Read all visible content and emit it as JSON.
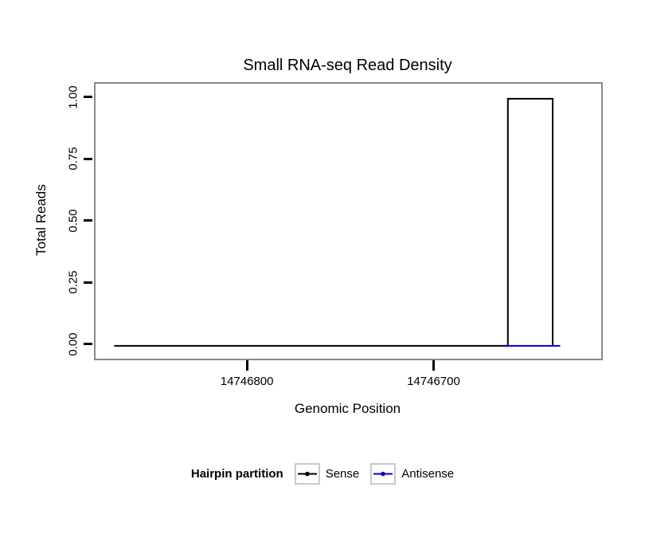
{
  "chart_data": {
    "type": "line",
    "title": "Small RNA-seq Read Density",
    "xlabel": "Genomic Position",
    "ylabel": "Total Reads",
    "xlim": [
      14746882,
      14746611
    ],
    "x_axis_reversed": true,
    "ylim": [
      -0.052,
      1.061
    ],
    "x_ticks": [
      14746800,
      14746700
    ],
    "x_tick_labels": [
      "14746800",
      "14746700"
    ],
    "y_ticks": [
      0.0,
      0.25,
      0.5,
      0.75,
      1.0
    ],
    "y_tick_labels": [
      "0.00",
      "0.25",
      "0.50",
      "0.75",
      "1.00"
    ],
    "grid": false,
    "panel_border_color": "#8a8a8a",
    "legend": {
      "title": "Hairpin partition",
      "position": "bottom",
      "entries": [
        {
          "label": "Sense",
          "color": "#000000"
        },
        {
          "label": "Antisense",
          "color": "#0000cd"
        }
      ]
    },
    "series": [
      {
        "name": "Sense",
        "color": "#000000",
        "points": [
          [
            14746872,
            0
          ],
          [
            14746661,
            0
          ],
          [
            14746661,
            1
          ],
          [
            14746637,
            1
          ],
          [
            14746637,
            0
          ]
        ]
      },
      {
        "name": "Antisense",
        "color": "#0000cd",
        "points": [
          [
            14746663,
            0
          ],
          [
            14746633,
            0
          ]
        ]
      }
    ]
  }
}
